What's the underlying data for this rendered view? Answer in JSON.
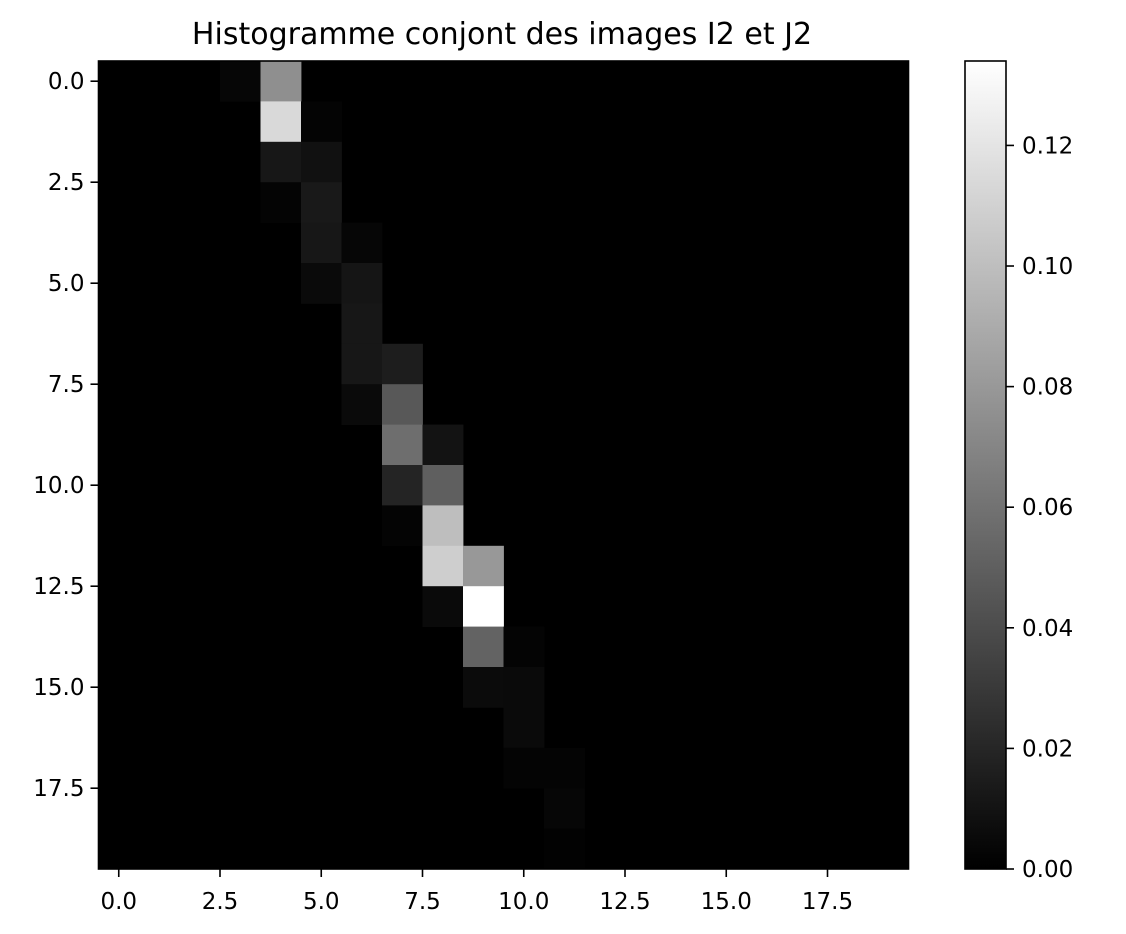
{
  "chart_data": {
    "type": "heatmap",
    "title": "Histogramme conjont des images I2 et J2",
    "xlabel": "",
    "ylabel": "",
    "colormap": "gray",
    "rows": 20,
    "cols": 20,
    "xlim": [
      -0.5,
      19.5
    ],
    "ylim": [
      19.5,
      -0.5
    ],
    "x_ticks": [
      0.0,
      2.5,
      5.0,
      7.5,
      10.0,
      12.5,
      15.0,
      17.5
    ],
    "y_ticks": [
      0.0,
      2.5,
      5.0,
      7.5,
      10.0,
      12.5,
      15.0,
      17.5
    ],
    "tick_labels": [
      "0.0",
      "2.5",
      "5.0",
      "7.5",
      "10.0",
      "12.5",
      "15.0",
      "17.5"
    ],
    "colorbar": {
      "vmin": 0.0,
      "vmax": 0.134,
      "ticks": [
        0.0,
        0.02,
        0.04,
        0.06,
        0.08,
        0.1,
        0.12
      ],
      "tick_labels": [
        "0.00",
        "0.02",
        "0.04",
        "0.06",
        "0.08",
        "0.10",
        "0.12"
      ]
    },
    "cells": [
      {
        "row": 0,
        "col": 3,
        "value": 0.003
      },
      {
        "row": 0,
        "col": 4,
        "value": 0.075
      },
      {
        "row": 1,
        "col": 4,
        "value": 0.114
      },
      {
        "row": 1,
        "col": 5,
        "value": 0.002
      },
      {
        "row": 2,
        "col": 4,
        "value": 0.012
      },
      {
        "row": 2,
        "col": 5,
        "value": 0.009
      },
      {
        "row": 3,
        "col": 4,
        "value": 0.002
      },
      {
        "row": 3,
        "col": 5,
        "value": 0.013
      },
      {
        "row": 4,
        "col": 5,
        "value": 0.012
      },
      {
        "row": 4,
        "col": 6,
        "value": 0.003
      },
      {
        "row": 5,
        "col": 5,
        "value": 0.005
      },
      {
        "row": 5,
        "col": 6,
        "value": 0.011
      },
      {
        "row": 6,
        "col": 6,
        "value": 0.012
      },
      {
        "row": 7,
        "col": 6,
        "value": 0.012
      },
      {
        "row": 7,
        "col": 7,
        "value": 0.015
      },
      {
        "row": 8,
        "col": 6,
        "value": 0.005
      },
      {
        "row": 8,
        "col": 7,
        "value": 0.046
      },
      {
        "row": 9,
        "col": 7,
        "value": 0.058
      },
      {
        "row": 9,
        "col": 8,
        "value": 0.01
      },
      {
        "row": 10,
        "col": 7,
        "value": 0.019
      },
      {
        "row": 10,
        "col": 8,
        "value": 0.05
      },
      {
        "row": 11,
        "col": 7,
        "value": 0.002
      },
      {
        "row": 11,
        "col": 8,
        "value": 0.1
      },
      {
        "row": 12,
        "col": 8,
        "value": 0.108
      },
      {
        "row": 12,
        "col": 9,
        "value": 0.08
      },
      {
        "row": 13,
        "col": 8,
        "value": 0.005
      },
      {
        "row": 13,
        "col": 9,
        "value": 0.134
      },
      {
        "row": 14,
        "col": 9,
        "value": 0.052
      },
      {
        "row": 14,
        "col": 10,
        "value": 0.002
      },
      {
        "row": 15,
        "col": 9,
        "value": 0.006
      },
      {
        "row": 15,
        "col": 10,
        "value": 0.005
      },
      {
        "row": 16,
        "col": 10,
        "value": 0.005
      },
      {
        "row": 17,
        "col": 10,
        "value": 0.002
      },
      {
        "row": 17,
        "col": 11,
        "value": 0.002
      },
      {
        "row": 18,
        "col": 11,
        "value": 0.003
      },
      {
        "row": 19,
        "col": 11,
        "value": 0.001
      }
    ]
  }
}
